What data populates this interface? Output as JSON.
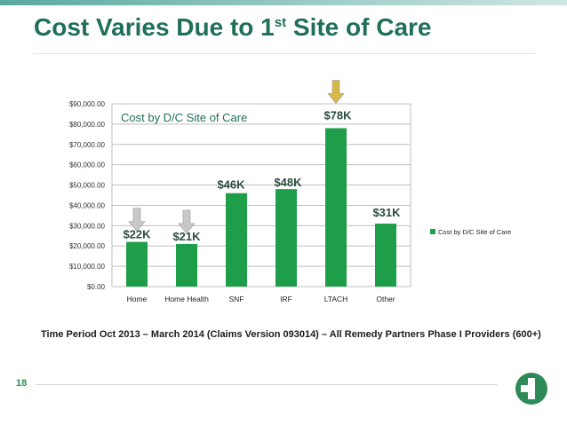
{
  "slide": {
    "title_main": "Cost Varies Due to 1",
    "title_sup": "st",
    "title_end": " Site of Care",
    "footnote": "Time Period Oct 2013 – March 2014 (Claims Version 093014) – All Remedy Partners Phase I Providers (600+)",
    "page_number": "18",
    "logo": "green-cross-logo"
  },
  "chart_data": {
    "type": "bar",
    "title": "Cost by D/C Site of Care",
    "categories": [
      "Home",
      "Home Health",
      "SNF",
      "IRF",
      "LTACH",
      "Other"
    ],
    "series": [
      {
        "name": "Cost by D/C Site of Care",
        "values": [
          22000,
          21000,
          46000,
          48000,
          78000,
          31000
        ]
      }
    ],
    "data_labels": [
      "$22K",
      "$21K",
      "$46K",
      "$48K",
      "$78K",
      "$31K"
    ],
    "y_ticks": [
      0,
      10000,
      20000,
      30000,
      40000,
      50000,
      60000,
      70000,
      80000,
      90000
    ],
    "y_tick_labels": [
      "$0.00",
      "$10,000.00",
      "$20,000.00",
      "$30,000.00",
      "$40,000.00",
      "$50,000.00",
      "$60,000.00",
      "$70,000.00",
      "$80,000.00",
      "$90,000.00"
    ],
    "ylim": [
      0,
      90000
    ],
    "grid": true,
    "legend": "right",
    "bar_color": "#1f9e4a",
    "arrow_markers": [
      {
        "category": "Home",
        "color": "#c8c8c8"
      },
      {
        "category": "Home Health",
        "color": "#c8c8c8"
      },
      {
        "category": "LTACH",
        "color": "#d9b84a"
      }
    ]
  }
}
